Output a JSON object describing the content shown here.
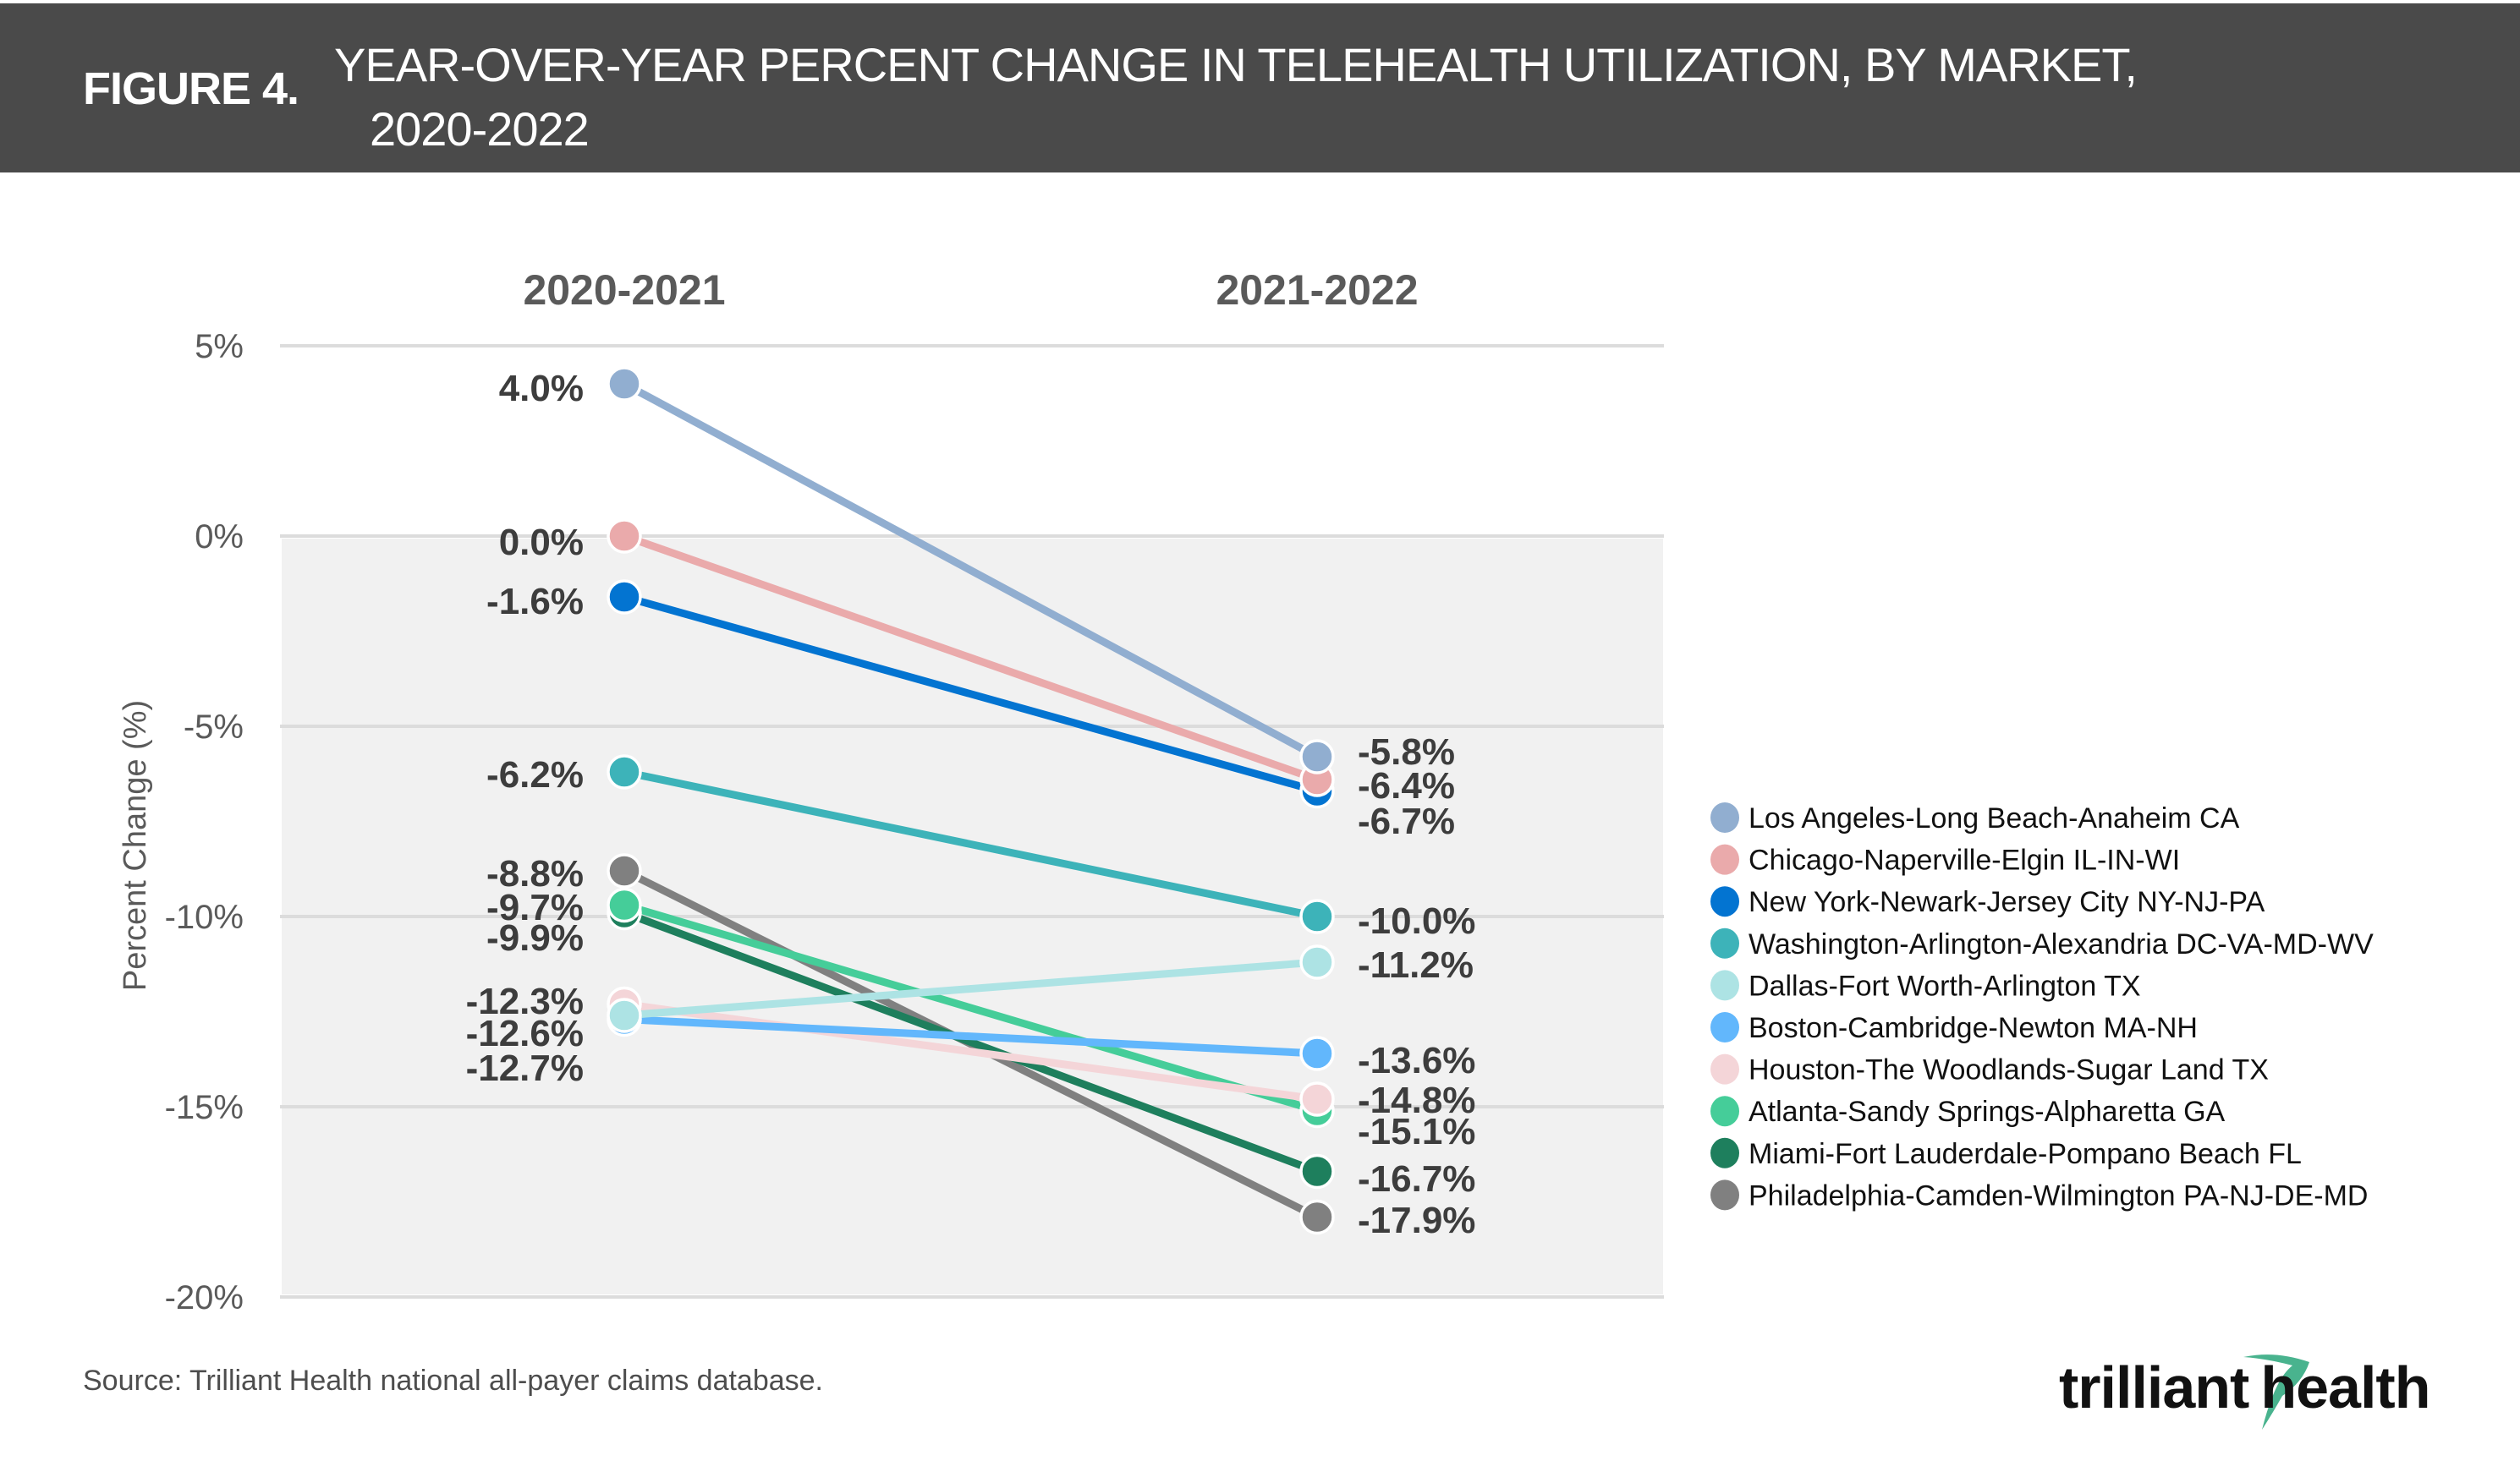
{
  "header": {
    "figure_label": "FIGURE 4.",
    "title_line1": " YEAR-OVER-YEAR PERCENT CHANGE IN TELEHEALTH UTILIZATION, BY MARKET,",
    "title_line2": "2020-2022",
    "background_color": "#4a4a4a"
  },
  "footer": {
    "source": "Source:  Trilliant Health national all-payer claims database.",
    "logo_text_left": "trilliant",
    "logo_text_right": "health",
    "logo_accent_color": "#49b38e"
  },
  "chart_data": {
    "type": "line",
    "title": "YEAR-OVER-YEAR PERCENT CHANGE IN TELEHEALTH UTILIZATION, BY MARKET, 2020-2022",
    "xlabel": "",
    "ylabel": "Percent Change (%)",
    "categories": [
      "2020-2021",
      "2021-2022"
    ],
    "ylim": [
      -20,
      5
    ],
    "yticks": [
      5,
      0,
      -5,
      -10,
      -15,
      -20
    ],
    "ytick_labels": [
      "5%",
      "0%",
      "-5%",
      "-10%",
      "-15%",
      "-20%"
    ],
    "grid": true,
    "shaded_region": [
      -20,
      0
    ],
    "legend_position": "right",
    "series": [
      {
        "name": "Los Angeles-Long Beach-Anaheim CA",
        "color": "#91aed0",
        "values": [
          4.0,
          -5.8
        ],
        "labels": [
          "4.0%",
          "-5.8%"
        ]
      },
      {
        "name": "Chicago-Naperville-Elgin IL-IN-WI",
        "color": "#eaaaab",
        "values": [
          0.0,
          -6.4
        ],
        "labels": [
          "0.0%",
          "-6.4%"
        ]
      },
      {
        "name": "New York-Newark-Jersey City NY-NJ-PA",
        "color": "#0374d1",
        "values": [
          -1.6,
          -6.7
        ],
        "labels": [
          "-1.6%",
          "-6.7%"
        ]
      },
      {
        "name": "Washington-Arlington-Alexandria DC-VA-MD-WV",
        "color": "#3db3b9",
        "values": [
          -6.2,
          -10.0
        ],
        "labels": [
          "-6.2%",
          "-10.0%"
        ]
      },
      {
        "name": "Dallas-Fort Worth-Arlington TX",
        "color": "#ade3e4",
        "values": [
          -12.6,
          -11.2
        ],
        "labels": [
          "-12.6%",
          "-11.2%"
        ]
      },
      {
        "name": "Boston-Cambridge-Newton MA-NH",
        "color": "#62b7fc",
        "values": [
          -12.7,
          -13.6
        ],
        "labels": [
          "-12.7%",
          "-13.6%"
        ]
      },
      {
        "name": "Houston-The Woodlands-Sugar Land TX",
        "color": "#f4d5d8",
        "values": [
          -12.3,
          -14.8
        ],
        "labels": [
          "-12.3%",
          "-14.8%"
        ]
      },
      {
        "name": "Atlanta-Sandy Springs-Alpharetta GA",
        "color": "#45cd99",
        "values": [
          -9.7,
          -15.1
        ],
        "labels": [
          "-9.7%",
          "-15.1%"
        ]
      },
      {
        "name": "Miami-Fort Lauderdale-Pompano Beach FL",
        "color": "#1e7f5d",
        "values": [
          -9.9,
          -16.7
        ],
        "labels": [
          "-9.9%",
          "-16.7%"
        ]
      },
      {
        "name": "Philadelphia-Camden-Wilmington PA-NJ-DE-MD",
        "color": "#808080",
        "values": [
          -8.8,
          -17.9
        ],
        "labels": [
          "-8.8%",
          "-17.9%"
        ]
      }
    ],
    "left_label_order": [
      "4.0%",
      "0.0%",
      "-1.6%",
      "-6.2%",
      "-8.8%",
      "-9.7%",
      "-9.9%",
      "-12.3%",
      "-12.6%",
      "-12.7%"
    ],
    "right_label_order": [
      "-5.8%",
      "-6.4%",
      "-6.7%",
      "-10.0%",
      "-11.2%",
      "-13.6%",
      "-14.8%",
      "-15.1%",
      "-16.7%",
      "-17.9%"
    ]
  }
}
